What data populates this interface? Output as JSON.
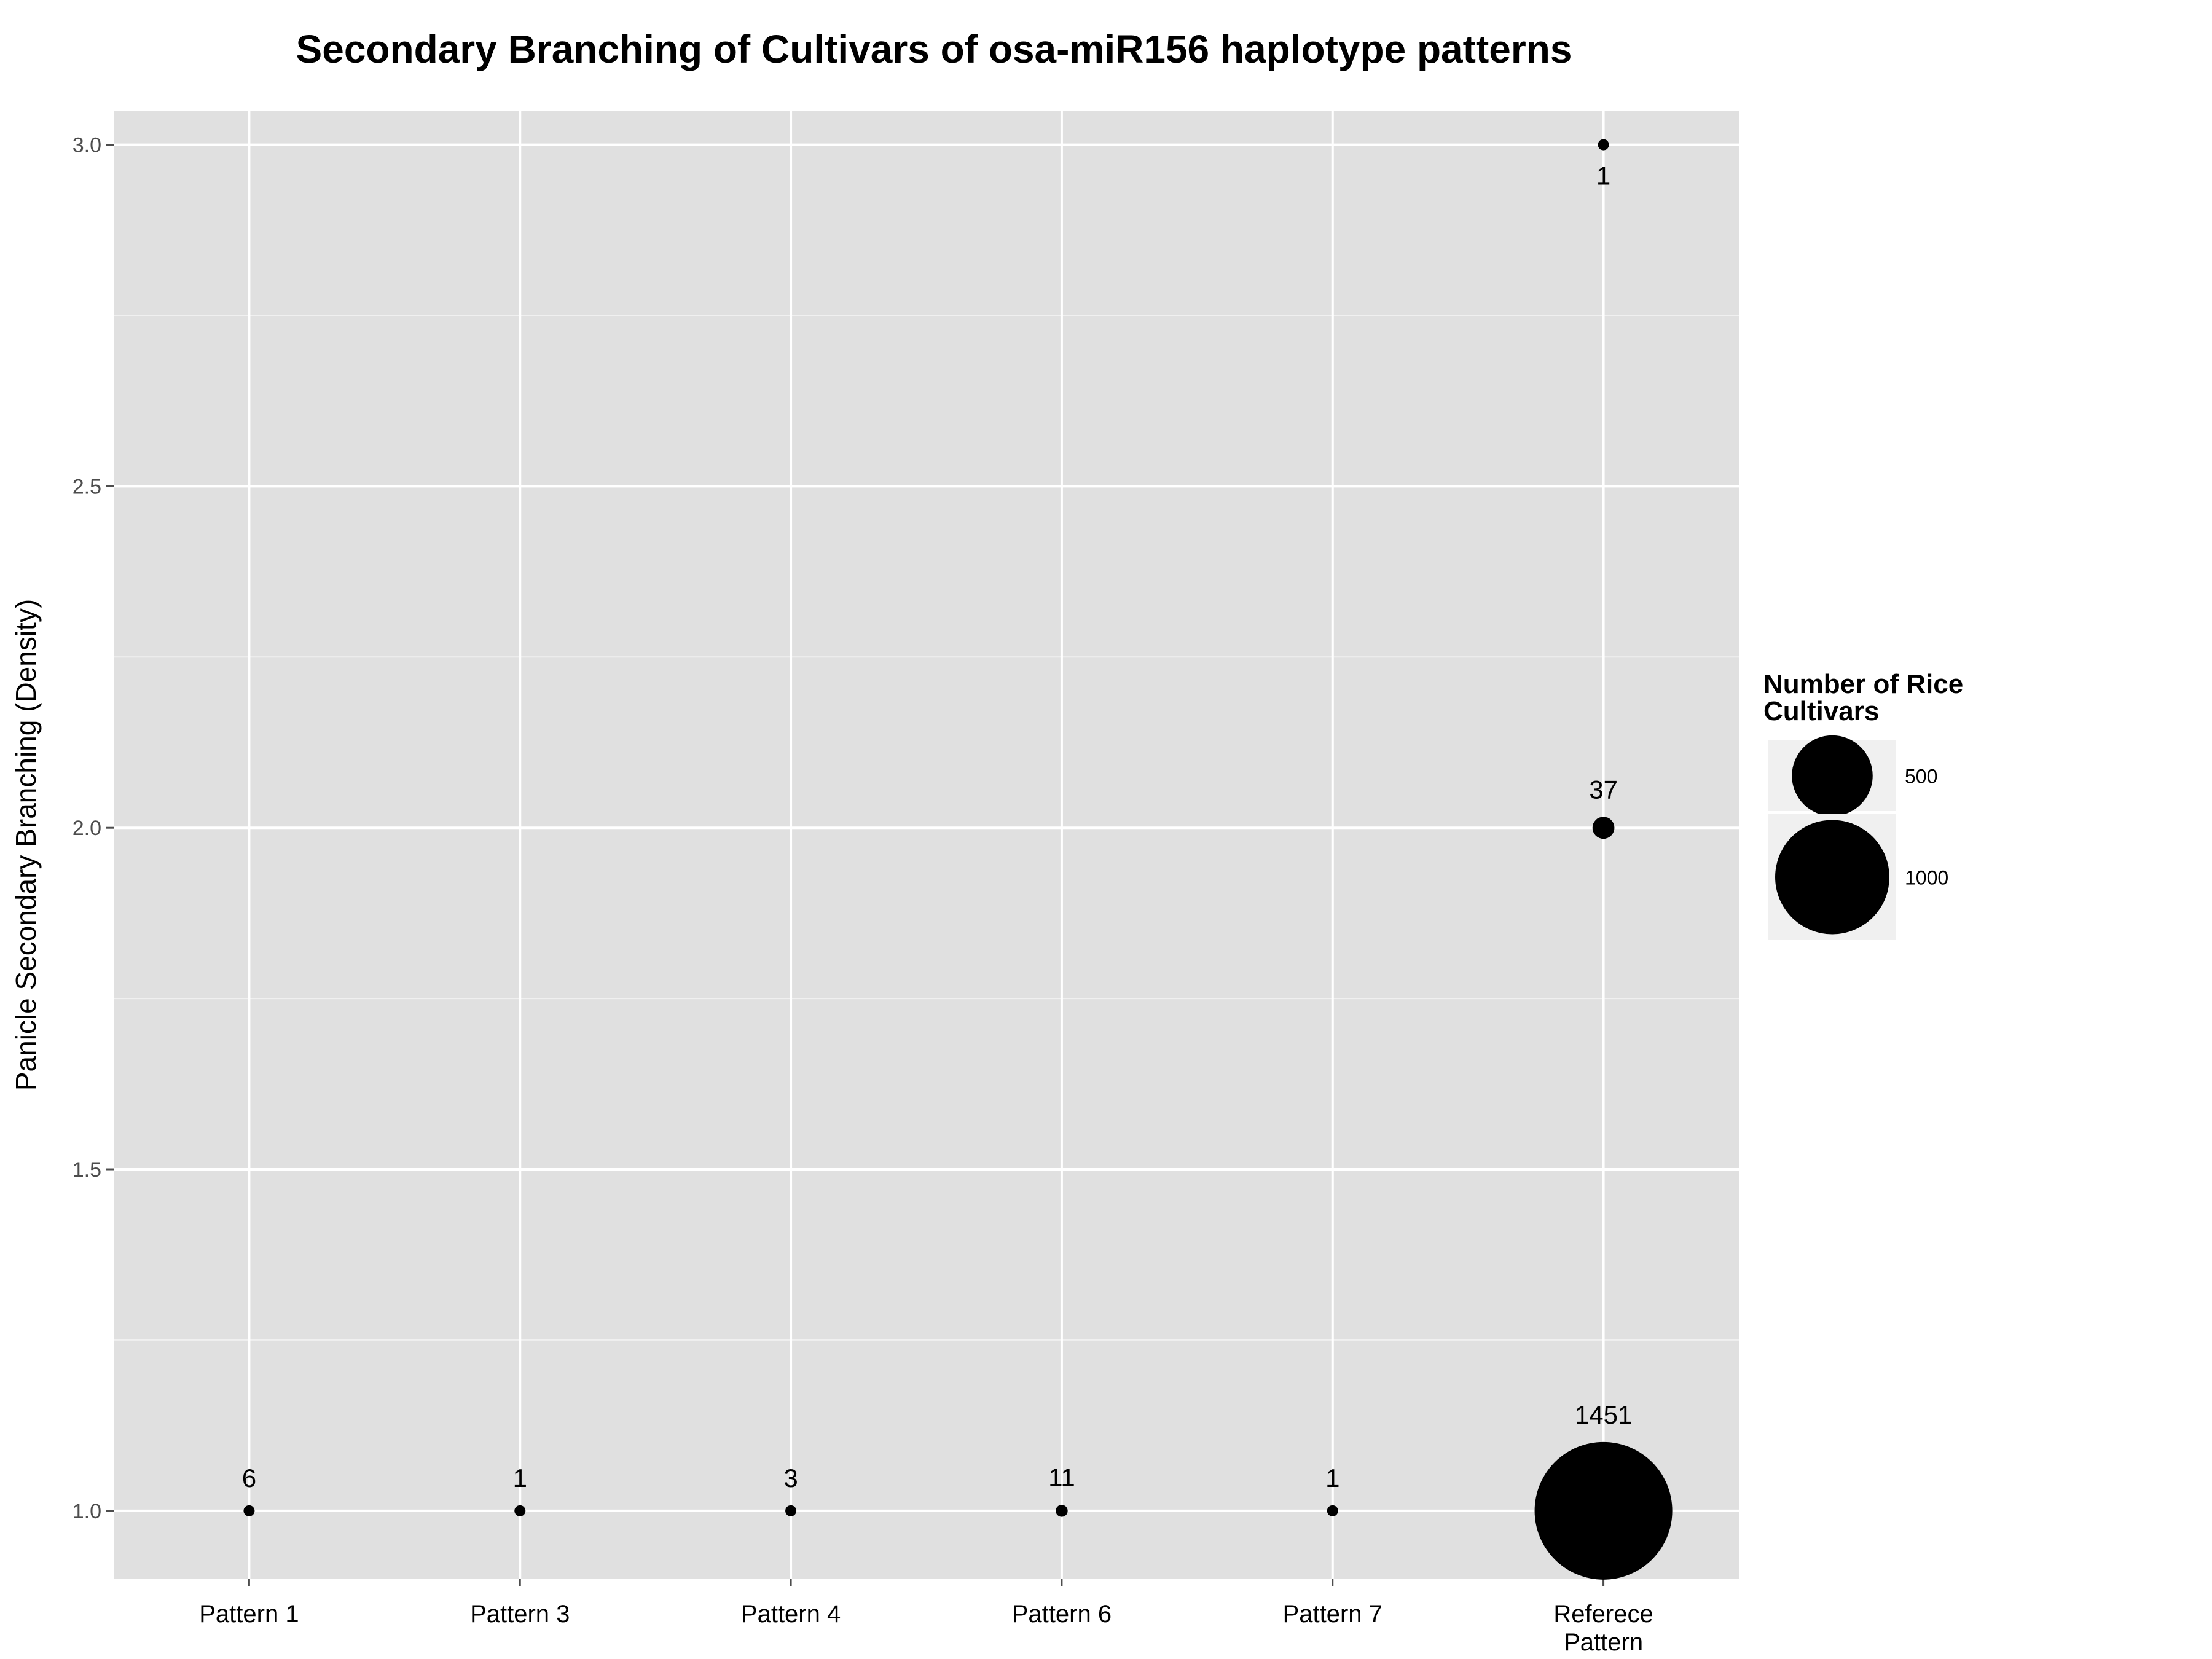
{
  "chart_data": {
    "type": "scatter",
    "title": "Secondary Branching of Cultivars of osa-miR156 haplotype patterns",
    "xlabel": "",
    "ylabel": "Panicle Secondary Branching (Density)",
    "categories": [
      "Pattern 1",
      "Pattern 3",
      "Pattern 4",
      "Pattern 6",
      "Pattern 7",
      "Referece Pattern"
    ],
    "category_lines": [
      [
        "Pattern 1"
      ],
      [
        "Pattern 3"
      ],
      [
        "Pattern 4"
      ],
      [
        "Pattern 6"
      ],
      [
        "Pattern 7"
      ],
      [
        "Referece",
        "Pattern"
      ]
    ],
    "yticks": [
      "1.0",
      "1.5",
      "2.0",
      "2.5",
      "3.0"
    ],
    "ylim": [
      0.9,
      3.05
    ],
    "points": [
      {
        "x": "Pattern 1",
        "y": 1.0,
        "count": 6,
        "label": "6"
      },
      {
        "x": "Pattern 3",
        "y": 1.0,
        "count": 1,
        "label": "1"
      },
      {
        "x": "Pattern 4",
        "y": 1.0,
        "count": 3,
        "label": "3"
      },
      {
        "x": "Pattern 6",
        "y": 1.0,
        "count": 11,
        "label": "11"
      },
      {
        "x": "Pattern 7",
        "y": 1.0,
        "count": 1,
        "label": "1"
      },
      {
        "x": "Referece Pattern",
        "y": 1.0,
        "count": 1451,
        "label": "1451"
      },
      {
        "x": "Referece Pattern",
        "y": 2.0,
        "count": 37,
        "label": "37"
      },
      {
        "x": "Referece Pattern",
        "y": 3.0,
        "count": 1,
        "label": "1"
      }
    ],
    "legend": {
      "title_lines": [
        "Number of Rice",
        "Cultivars"
      ],
      "entries": [
        {
          "value": 500,
          "label": "500"
        },
        {
          "value": 1000,
          "label": "1000"
        }
      ],
      "placement": "right"
    },
    "grid": true,
    "colors": {
      "panel": "#e0e0e0",
      "grid_major": "#ffffff",
      "grid_minor": "#f0f0f0",
      "point": "#000000",
      "legend_key": "#f0f0f0"
    }
  }
}
